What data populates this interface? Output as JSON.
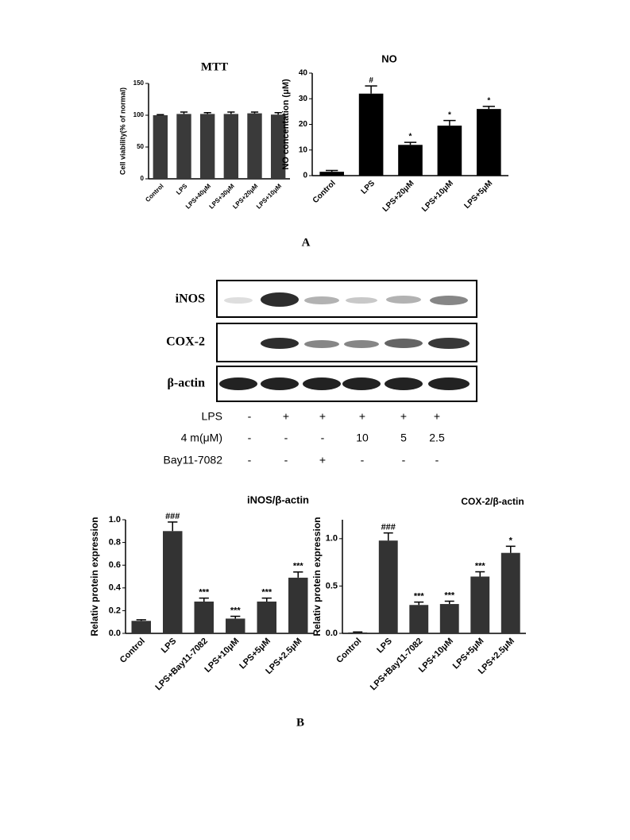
{
  "chart_data": [
    {
      "type": "bar",
      "title": "MTT",
      "y_label": "Cell viability(% of normal)",
      "categories": [
        "Control",
        "LPS",
        "LPS+40μM",
        "LPS+30μM",
        "LPS+20μM",
        "LPS+10μM"
      ],
      "values": [
        100,
        102,
        102,
        102,
        103,
        101
      ],
      "errors": [
        1,
        3,
        2,
        3,
        2,
        3
      ],
      "color": "#3a3a3a",
      "ylim": [
        0,
        150
      ],
      "yticks": [
        0,
        50,
        100,
        150
      ]
    },
    {
      "type": "bar",
      "title": "NO",
      "y_label": "NO concentation (μM)",
      "categories": [
        "Control",
        "LPS",
        "LPS+20μM",
        "LPS+10μM",
        "LPS+5μM"
      ],
      "values": [
        1.5,
        32,
        12,
        19.5,
        26
      ],
      "errors": [
        0.5,
        3,
        1,
        2,
        1
      ],
      "annotations": [
        null,
        "#",
        "*",
        "*",
        "*"
      ],
      "color": "#000000",
      "ylim": [
        0,
        40
      ],
      "yticks": [
        0,
        10,
        20,
        30,
        40
      ]
    },
    {
      "type": "bar",
      "title": "iNOS/β-actin",
      "y_label": "Relativ protein expression",
      "categories": [
        "Control",
        "LPS",
        "LPS+Bay11-7082",
        "LPS+10μM",
        "LPS+5μM",
        "LPS+2.5μM"
      ],
      "values": [
        0.11,
        0.9,
        0.28,
        0.13,
        0.28,
        0.49
      ],
      "errors": [
        0.01,
        0.08,
        0.03,
        0.02,
        0.03,
        0.05
      ],
      "annotations": [
        null,
        "###",
        "***",
        "***",
        "***",
        "***"
      ],
      "color": "#333333",
      "ylim": [
        0,
        1.0
      ],
      "yticks": [
        {
          "value": 0,
          "label": "0.0"
        },
        0.2,
        0.4,
        0.6,
        0.8,
        {
          "value": 1,
          "label": "1.0"
        }
      ]
    },
    {
      "type": "bar",
      "title": "COX-2/β-actin",
      "y_label": "Relativ protein expression",
      "categories": [
        "Control",
        "LPS",
        "LPS+Bay11-7082",
        "LPS+10μM",
        "LPS+5μM",
        "LPS+2.5μM"
      ],
      "values": [
        0.01,
        0.98,
        0.3,
        0.31,
        0.6,
        0.85
      ],
      "errors": [
        0.005,
        0.08,
        0.03,
        0.03,
        0.05,
        0.07
      ],
      "annotations": [
        null,
        "###",
        "***",
        "***",
        "***",
        "*"
      ],
      "color": "#333333",
      "ylim": [
        0,
        1.2
      ],
      "yticks": [
        {
          "value": 0,
          "label": "0.0"
        },
        0.5,
        {
          "value": 1,
          "label": "1.0"
        }
      ]
    }
  ],
  "panel_labels": [
    "A",
    "B"
  ],
  "blot": {
    "rows": [
      "iNOS",
      "COX-2",
      "β-actin"
    ],
    "treatments": [
      {
        "label": "LPS",
        "cells": [
          "-",
          "+",
          "+",
          "+",
          "+",
          "+"
        ]
      },
      {
        "label": "4 m(μM)",
        "cells": [
          "-",
          "-",
          "-",
          "10",
          "5",
          "2.5"
        ]
      },
      {
        "label": "Bay11-7082",
        "cells": [
          "-",
          "-",
          "+",
          "-",
          "-",
          "-"
        ]
      }
    ]
  }
}
